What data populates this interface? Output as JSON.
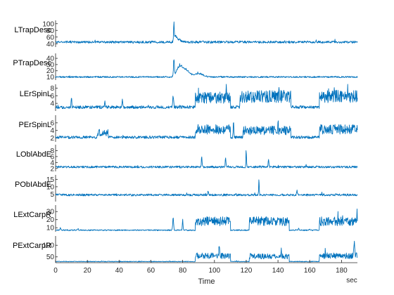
{
  "chart_data": {
    "type": "line",
    "title": "",
    "xlabel": "Time",
    "x_unit": "sec",
    "xlim": [
      0,
      190
    ],
    "xticks": [
      0,
      20,
      40,
      60,
      80,
      100,
      120,
      140,
      160,
      180
    ],
    "line_color": "#0072BD",
    "grid": false,
    "legend": "none",
    "rows": [
      {
        "label": "LTrapDesc",
        "ylim": [
          30,
          110
        ],
        "yticks": [
          40,
          60,
          80,
          100
        ],
        "baseline": 45,
        "noise": 3.5,
        "events": [
          {
            "t": 74.5,
            "v": 105,
            "w": 0.3
          },
          {
            "t": 75.5,
            "v": 62,
            "w": 1.2
          },
          {
            "t": 78,
            "v": 52,
            "w": 2.0
          }
        ]
      },
      {
        "label": "PTrapDesc",
        "ylim": [
          5,
          48
        ],
        "yticks": [
          10,
          20,
          30,
          40
        ],
        "baseline": 10,
        "noise": 1.2,
        "events": [
          {
            "t": 74.5,
            "v": 40,
            "w": 0.4
          },
          {
            "t": 78,
            "v": 28,
            "w": 2.5
          },
          {
            "t": 82,
            "v": 22,
            "w": 3.0
          },
          {
            "t": 90,
            "v": 16,
            "w": 4.0
          }
        ]
      },
      {
        "label": "LErSpinL",
        "ylim": [
          2,
          9
        ],
        "yticks": [
          4,
          6,
          8
        ],
        "baseline": 3,
        "noise": 0.4,
        "segments": [
          {
            "t0": 88,
            "t1": 110,
            "v": 5.5
          },
          {
            "t0": 116,
            "t1": 148,
            "v": 5.8
          },
          {
            "t0": 166,
            "t1": 190,
            "v": 5.8
          }
        ],
        "events": [
          {
            "t": 10,
            "v": 5.5,
            "w": 0.3
          },
          {
            "t": 31,
            "v": 5.0,
            "w": 0.3
          },
          {
            "t": 42,
            "v": 5.5,
            "w": 0.3
          },
          {
            "t": 74,
            "v": 6.5,
            "w": 0.4
          }
        ]
      },
      {
        "label": "PErSpinL",
        "ylim": [
          1,
          8
        ],
        "yticks": [
          2,
          4,
          6
        ],
        "baseline": 2.2,
        "noise": 0.35,
        "segments": [
          {
            "t0": 26,
            "t1": 33,
            "v": 3.4
          },
          {
            "t0": 88,
            "t1": 110,
            "v": 4.3
          },
          {
            "t0": 118,
            "t1": 148,
            "v": 4.0
          },
          {
            "t0": 166,
            "t1": 190,
            "v": 4.3
          }
        ],
        "events": [
          {
            "t": 112,
            "v": 6.5,
            "w": 0.3
          },
          {
            "t": 140,
            "v": 6.8,
            "w": 0.3
          }
        ]
      },
      {
        "label": "LOblAbdE",
        "ylim": [
          1,
          10
        ],
        "yticks": [
          2,
          4,
          6,
          8
        ],
        "baseline": 2.5,
        "noise": 0.35,
        "events": [
          {
            "t": 92,
            "v": 6.8,
            "w": 0.3
          },
          {
            "t": 107,
            "v": 6.0,
            "w": 0.3
          },
          {
            "t": 120,
            "v": 9.0,
            "w": 0.25
          },
          {
            "t": 134,
            "v": 5.5,
            "w": 0.3
          }
        ]
      },
      {
        "label": "PObIAbdE",
        "ylim": [
          0,
          18
        ],
        "yticks": [
          5,
          10,
          15
        ],
        "baseline": 4.5,
        "noise": 0.7,
        "events": [
          {
            "t": 128,
            "v": 16,
            "w": 0.25
          },
          {
            "t": 96,
            "v": 8,
            "w": 0.3
          },
          {
            "t": 152,
            "v": 7.5,
            "w": 0.3
          }
        ]
      },
      {
        "label": "LExtCarpR",
        "ylim": [
          5,
          38
        ],
        "yticks": [
          10,
          20,
          30
        ],
        "baseline": 7,
        "noise": 0.7,
        "segments": [
          {
            "t0": 88,
            "t1": 110,
            "v": 18
          },
          {
            "t0": 122,
            "t1": 147,
            "v": 18
          },
          {
            "t0": 166,
            "t1": 190,
            "v": 18
          }
        ],
        "events": [
          {
            "t": 3,
            "v": 11,
            "w": 0.3
          },
          {
            "t": 14,
            "v": 9,
            "w": 0.5
          },
          {
            "t": 74,
            "v": 23,
            "w": 0.4
          },
          {
            "t": 80,
            "v": 22,
            "w": 0.3
          },
          {
            "t": 153,
            "v": 10,
            "w": 0.3
          },
          {
            "t": 160,
            "v": 9,
            "w": 0.3
          }
        ]
      },
      {
        "label": "PExtCarpR",
        "ylim": [
          25,
          140
        ],
        "yticks": [
          50,
          100
        ],
        "baseline": 30,
        "noise": 1.5,
        "segments": [
          {
            "t0": 88,
            "t1": 110,
            "v": 55
          },
          {
            "t0": 122,
            "t1": 147,
            "v": 52
          },
          {
            "t0": 166,
            "t1": 190,
            "v": 55
          }
        ],
        "events": [
          {
            "t": 188,
            "v": 120,
            "w": 0.4
          },
          {
            "t": 103,
            "v": 105,
            "w": 0.3
          },
          {
            "t": 142,
            "v": 80,
            "w": 0.3
          }
        ]
      }
    ]
  }
}
